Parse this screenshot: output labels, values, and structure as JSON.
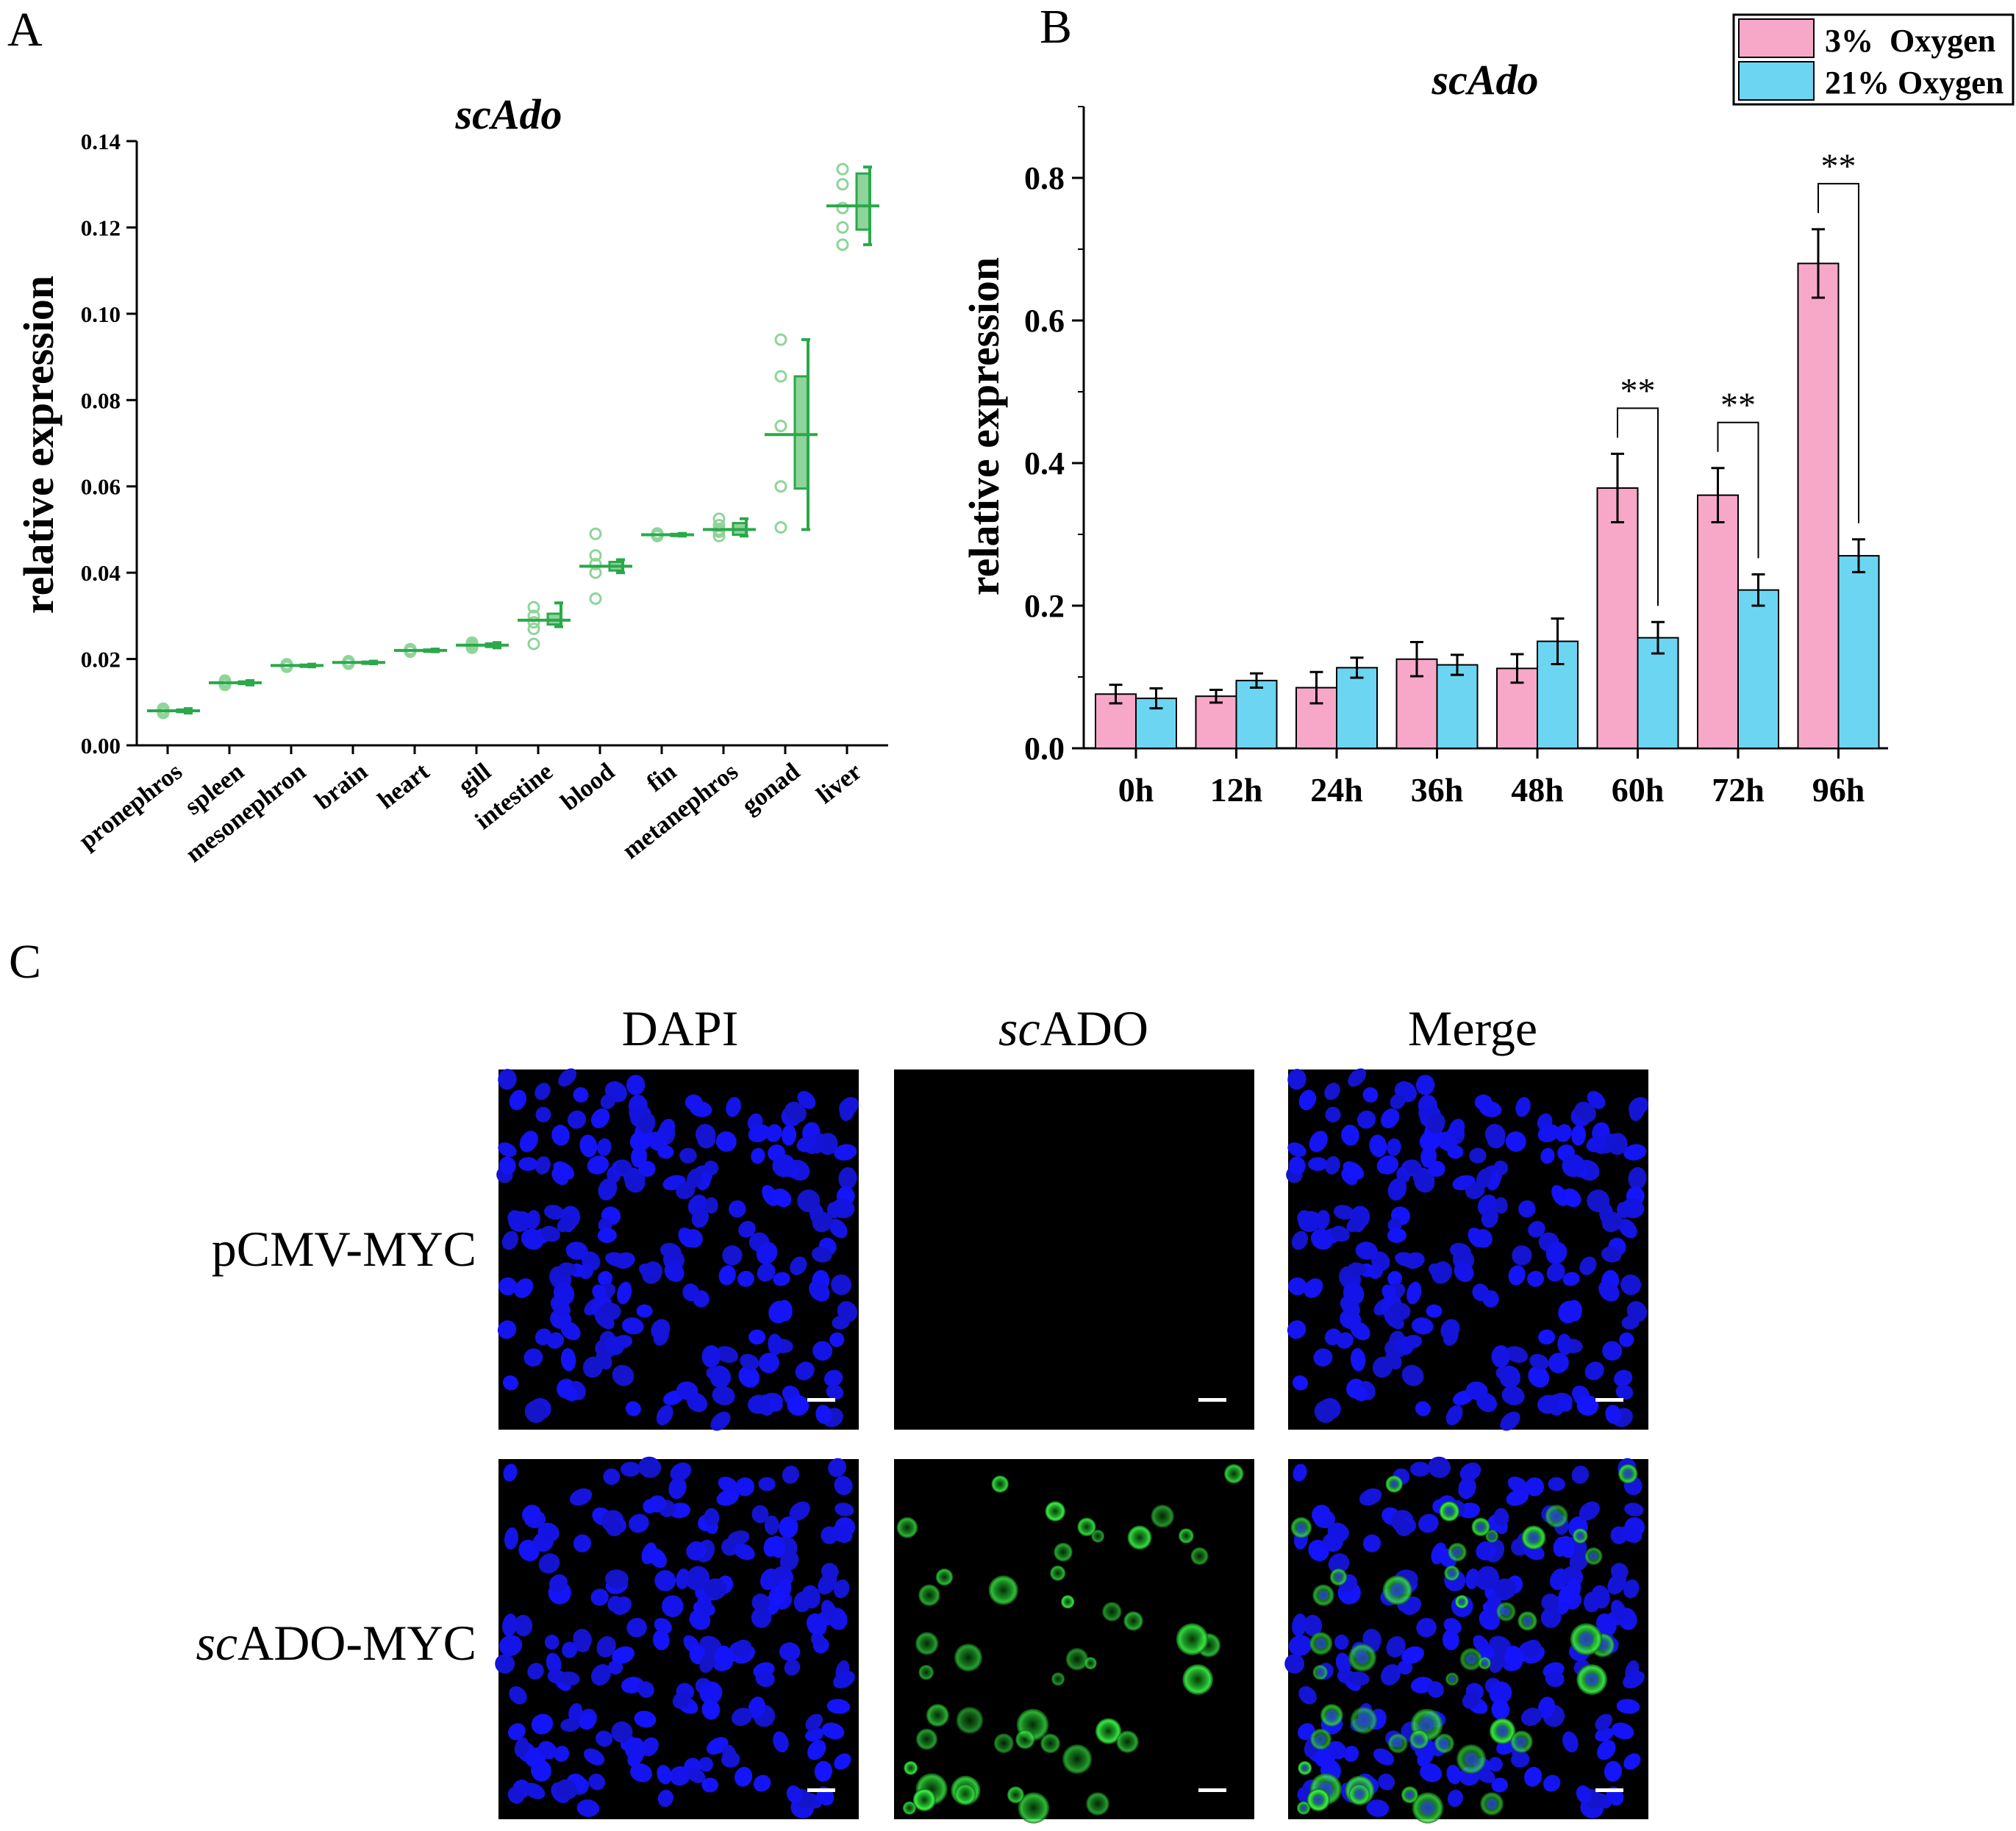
{
  "panel_labels": {
    "a": "A",
    "b": "B",
    "c": "C"
  },
  "colors": {
    "green": "#2aa84a",
    "green_light": "#8fd49a",
    "pink": "#f7a8c8",
    "cyan": "#6cd6f2",
    "dapi_blue": "#1a1aff",
    "ado_green": "#2ee23a"
  },
  "chart_data": [
    {
      "type": "scatter",
      "title": "scAdo",
      "xlabel": "",
      "ylabel": "relative expression",
      "ylim": [
        0,
        0.14
      ],
      "yticks": [
        "0.00",
        "0.02",
        "0.04",
        "0.06",
        "0.08",
        "0.10",
        "0.12",
        "0.14"
      ],
      "categories": [
        "pronephros",
        "spleen",
        "mesonephron",
        "brain",
        "heart",
        "gill",
        "intestine",
        "blood",
        "fin",
        "metanephros",
        "gonad",
        "liver"
      ],
      "mean": [
        0.008,
        0.0145,
        0.0185,
        0.0192,
        0.022,
        0.0232,
        0.029,
        0.0415,
        0.0488,
        0.05,
        0.072,
        0.125
      ],
      "box_low": [
        0.0077,
        0.0142,
        0.0183,
        0.019,
        0.0218,
        0.0228,
        0.028,
        0.0405,
        0.0486,
        0.0488,
        0.0595,
        0.1195
      ],
      "box_high": [
        0.0083,
        0.0148,
        0.0187,
        0.0194,
        0.0222,
        0.0236,
        0.0305,
        0.0425,
        0.049,
        0.0515,
        0.0855,
        0.1325
      ],
      "whisker_low": [
        0.0075,
        0.014,
        0.0182,
        0.0189,
        0.0217,
        0.0226,
        0.0275,
        0.04,
        0.0485,
        0.0485,
        0.05,
        0.116
      ],
      "whisker_high": [
        0.0085,
        0.015,
        0.0188,
        0.0195,
        0.0223,
        0.0238,
        0.033,
        0.043,
        0.0491,
        0.0525,
        0.094,
        0.134
      ],
      "points": [
        [
          0.0075,
          0.0078,
          0.008,
          0.0082,
          0.0085
        ],
        [
          0.014,
          0.0143,
          0.0145,
          0.0147,
          0.015
        ],
        [
          0.0182,
          0.0184,
          0.0185,
          0.0186,
          0.0188
        ],
        [
          0.0189,
          0.0191,
          0.0192,
          0.0193,
          0.0195
        ],
        [
          0.0217,
          0.0219,
          0.022,
          0.0221,
          0.0223
        ],
        [
          0.0226,
          0.0229,
          0.0232,
          0.0235,
          0.0238
        ],
        [
          0.0235,
          0.027,
          0.0285,
          0.03,
          0.032
        ],
        [
          0.034,
          0.04,
          0.042,
          0.044,
          0.049
        ],
        [
          0.0485,
          0.0487,
          0.0488,
          0.0489,
          0.0491
        ],
        [
          0.0485,
          0.0495,
          0.05,
          0.051,
          0.0525
        ],
        [
          0.0505,
          0.06,
          0.074,
          0.0855,
          0.094
        ],
        [
          0.116,
          0.12,
          0.1245,
          0.13,
          0.1335
        ]
      ]
    },
    {
      "type": "bar",
      "title": "scAdo",
      "xlabel": "",
      "ylabel": "relative expression",
      "ylim": [
        0,
        0.9
      ],
      "yticks": [
        "0.0",
        "0.2",
        "0.4",
        "0.6",
        "0.8"
      ],
      "categories": [
        "0h",
        "12h",
        "24h",
        "36h",
        "48h",
        "60h",
        "72h",
        "96h"
      ],
      "series": [
        {
          "name": "3%  Oxygen",
          "values": [
            0.076,
            0.073,
            0.085,
            0.125,
            0.112,
            0.365,
            0.355,
            0.68
          ],
          "errors": [
            0.013,
            0.009,
            0.022,
            0.024,
            0.02,
            0.048,
            0.038,
            0.048
          ]
        },
        {
          "name": "21% Oxygen",
          "values": [
            0.07,
            0.095,
            0.113,
            0.117,
            0.15,
            0.155,
            0.222,
            0.27
          ],
          "errors": [
            0.014,
            0.01,
            0.014,
            0.014,
            0.032,
            0.022,
            0.022,
            0.023
          ]
        }
      ],
      "significance": [
        {
          "category": "60h",
          "label": "**"
        },
        {
          "category": "72h",
          "label": "**"
        },
        {
          "category": "96h",
          "label": "**"
        }
      ],
      "legend": "top-right"
    }
  ],
  "panel_c": {
    "column_headers": [
      "DAPI",
      "ADO",
      "Merge"
    ],
    "column_header_prefix": "sc",
    "row_labels": [
      "pCMV-MYC",
      "ADO-MYC"
    ],
    "row_label_prefix": "sc"
  }
}
